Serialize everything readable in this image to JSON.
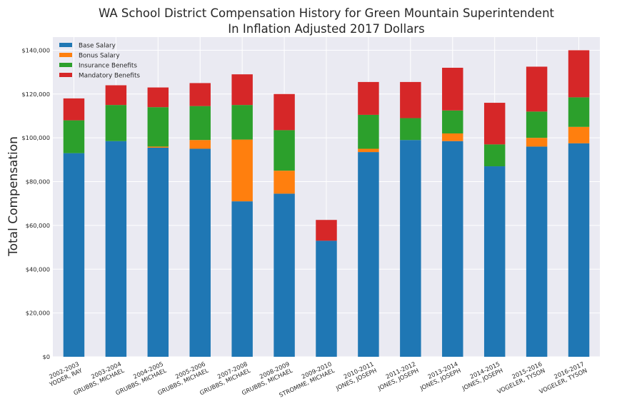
{
  "chart_data": {
    "type": "bar",
    "stacked": true,
    "title": "WA School District Compensation History for Green Mountain Superintendent",
    "subtitle": "In Inflation Adjusted 2017 Dollars",
    "xlabel": "",
    "ylabel": "Total Compensation",
    "ylim": [
      0,
      146000
    ],
    "ytick_values": [
      0,
      20000,
      40000,
      60000,
      80000,
      100000,
      120000,
      140000
    ],
    "ytick_labels": [
      "$0",
      "$20,000",
      "$40,000",
      "$60,000",
      "$80,000",
      "$100,000",
      "$120,000",
      "$140,000"
    ],
    "grid": true,
    "legend_position": "top-left",
    "categories": [
      [
        "2002-2003",
        "YODER, RAY"
      ],
      [
        "2003-2004",
        "GRUBBS, MICHAEL"
      ],
      [
        "2004-2005",
        "GRUBBS, MICHAEL"
      ],
      [
        "2005-2006",
        "GRUBBS, MICHAEL"
      ],
      [
        "2007-2008",
        "GRUBBS, MICHAEL"
      ],
      [
        "2008-2009",
        "GRUBBS, MICHAEL"
      ],
      [
        "2009-2010",
        "STROMME, MICHAEL"
      ],
      [
        "2010-2011",
        "JONES, JOSEPH"
      ],
      [
        "2011-2012",
        "JONES, JOSEPH"
      ],
      [
        "2013-2014",
        "JONES, JOSEPH"
      ],
      [
        "2014-2015",
        "JONES, JOSEPH"
      ],
      [
        "2015-2016",
        "VOGELER, TYSON"
      ],
      [
        "2016-2017",
        "VOGELER, TYSON"
      ]
    ],
    "series": [
      {
        "name": "Base Salary",
        "color": "#1f77b4",
        "values": [
          93000,
          98500,
          95500,
          95000,
          71000,
          74500,
          53000,
          93500,
          99000,
          98500,
          87000,
          96000,
          97500
        ]
      },
      {
        "name": "Bonus Salary",
        "color": "#ff7f0e",
        "values": [
          0,
          0,
          500,
          4000,
          28200,
          10500,
          0,
          1500,
          0,
          3500,
          0,
          4000,
          7500
        ]
      },
      {
        "name": "Insurance Benefits",
        "color": "#2ca02c",
        "values": [
          15000,
          16500,
          18000,
          15500,
          15800,
          18500,
          0,
          15500,
          10000,
          10500,
          10000,
          12000,
          13500
        ]
      },
      {
        "name": "Mandatory Benefits",
        "color": "#d62728",
        "values": [
          10000,
          9000,
          9000,
          10500,
          14000,
          16500,
          9500,
          15000,
          16500,
          19500,
          19000,
          20500,
          21500
        ]
      }
    ]
  }
}
